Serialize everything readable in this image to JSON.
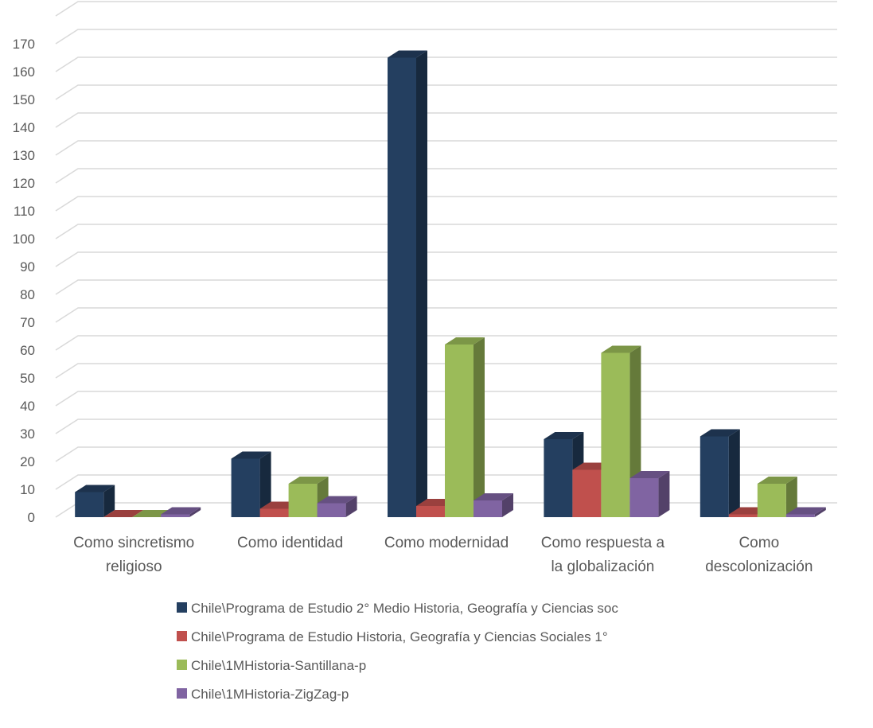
{
  "chart_data": {
    "type": "bar",
    "style": "3d-clustered-column",
    "title": "",
    "xlabel": "",
    "ylabel": "",
    "ylim": [
      0,
      170
    ],
    "ytick_step": 10,
    "grid": true,
    "legend_position": "bottom",
    "categories": [
      [
        "Como sincretismo",
        "religioso"
      ],
      [
        "Como identidad"
      ],
      [
        "Como modernidad"
      ],
      [
        "Como respuesta a",
        "la globalización"
      ],
      [
        "Como",
        "descolonización"
      ]
    ],
    "series": [
      {
        "name": "Chile\\Programa de Estudio 2° Medio Historia, Geografía y Ciencias soc",
        "color": "#243F60",
        "values": [
          9,
          21,
          165,
          28,
          29
        ]
      },
      {
        "name": "Chile\\Programa de Estudio Historia, Geografía y Ciencias Sociales 1°",
        "color": "#C0504D",
        "values": [
          0,
          3,
          4,
          17,
          1
        ]
      },
      {
        "name": "Chile\\1MHistoria-Santillana-p",
        "color": "#9BBB59",
        "values": [
          0,
          12,
          62,
          59,
          12
        ]
      },
      {
        "name": "Chile\\1MHistoria-ZigZag-p",
        "color": "#8064A2",
        "values": [
          1,
          5,
          6,
          14,
          1
        ]
      }
    ]
  }
}
